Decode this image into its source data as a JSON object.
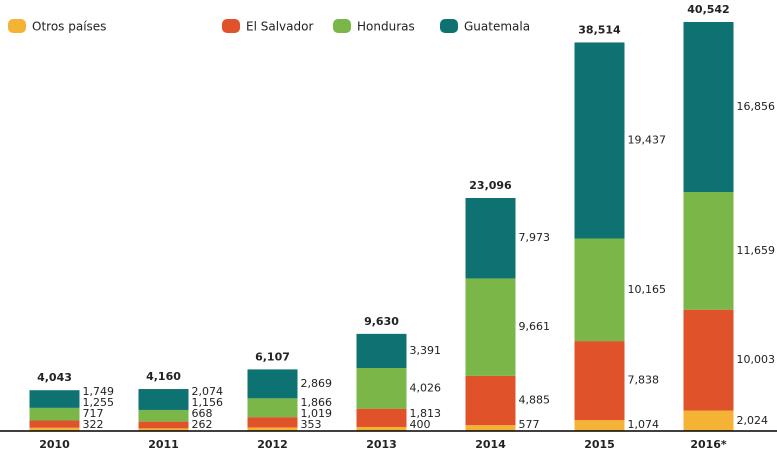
{
  "chart_data": {
    "type": "stacked-bar",
    "categories": [
      "2010",
      "2011",
      "2012",
      "2013",
      "2014",
      "2015",
      "2016*"
    ],
    "series": [
      {
        "name": "Otros países",
        "color": "#f5b335",
        "values": [
          322,
          262,
          353,
          400,
          577,
          1074,
          2024
        ],
        "value_labels": [
          "322",
          "262",
          "353",
          "400",
          "577",
          "1,074",
          "2,024"
        ]
      },
      {
        "name": "El Salvador",
        "color": "#e0532a",
        "values": [
          717,
          668,
          1019,
          1813,
          4885,
          7838,
          10003
        ],
        "value_labels": [
          "717",
          "668",
          "1,019",
          "1,813",
          "4,885",
          "7,838",
          "10,003"
        ]
      },
      {
        "name": "Honduras",
        "color": "#7ab648",
        "values": [
          1255,
          1156,
          1866,
          4026,
          9661,
          10165,
          11659
        ],
        "value_labels": [
          "1,255",
          "1,156",
          "1,866",
          "4,026",
          "9,661",
          "10,165",
          "11,659"
        ]
      },
      {
        "name": "Guatemala",
        "color": "#0e7272",
        "values": [
          1749,
          2074,
          2869,
          3391,
          7973,
          19437,
          16856
        ],
        "value_labels": [
          "1,749",
          "2,074",
          "2,869",
          "3,391",
          "7,973",
          "19,437",
          "16,856"
        ]
      }
    ],
    "totals": {
      "values": [
        4043,
        4160,
        6107,
        9630,
        23096,
        38514,
        40542
      ],
      "value_labels": [
        "4,043",
        "4,160",
        "6,107",
        "9,630",
        "23,096",
        "38,514",
        "40,542"
      ]
    },
    "ylim": [
      0,
      40542
    ]
  }
}
